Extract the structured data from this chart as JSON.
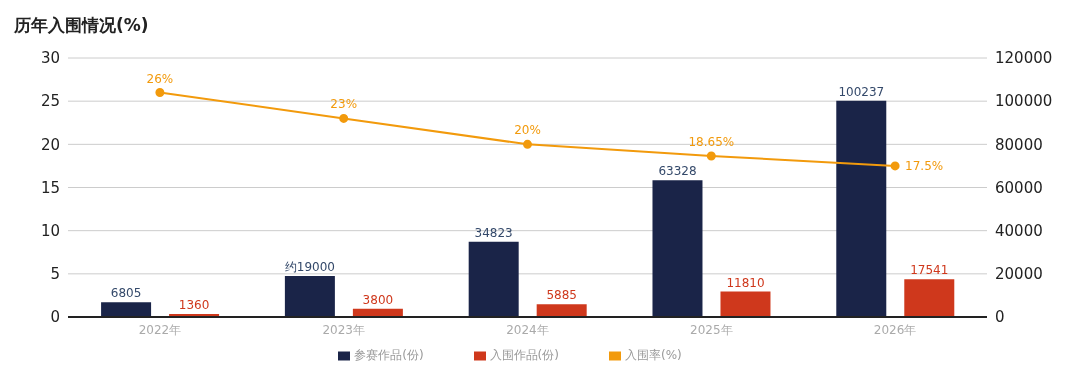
{
  "chart_data": {
    "type": "bar",
    "title": "历年入围情况(%)",
    "categories": [
      "2022年",
      "2023年",
      "2024年",
      "2025年",
      "2026年"
    ],
    "series": [
      {
        "name": "参赛作品(份)",
        "color": "#1a2448",
        "axis": "y2",
        "values": [
          6805,
          19000,
          34823,
          63328,
          100237
        ],
        "value_labels": [
          "6805",
          "约19000",
          "34823",
          "63328",
          "100237"
        ]
      },
      {
        "name": "入围作品(份)",
        "color": "#cf381c",
        "axis": "y2",
        "values": [
          1360,
          3800,
          5885,
          11810,
          17541
        ],
        "value_labels": [
          "1360",
          "3800",
          "5885",
          "11810",
          "17541"
        ]
      },
      {
        "name": "入围率(%)",
        "type": "line",
        "color": "#f29a0c",
        "values": [
          26,
          23,
          20,
          18.65,
          17.5
        ],
        "value_labels": [
          "26%",
          "23%",
          "20%",
          "18.65%",
          "17.5%"
        ]
      }
    ],
    "ylim": [
      0,
      30
    ],
    "yticks": [
      0,
      5,
      10,
      15,
      20,
      25,
      30
    ],
    "y2lim": [
      0,
      120000
    ],
    "y2ticks": [
      0,
      20000,
      40000,
      60000,
      80000,
      100000,
      120000
    ],
    "grid": "y",
    "legend": "bottom",
    "marker": "circle"
  }
}
